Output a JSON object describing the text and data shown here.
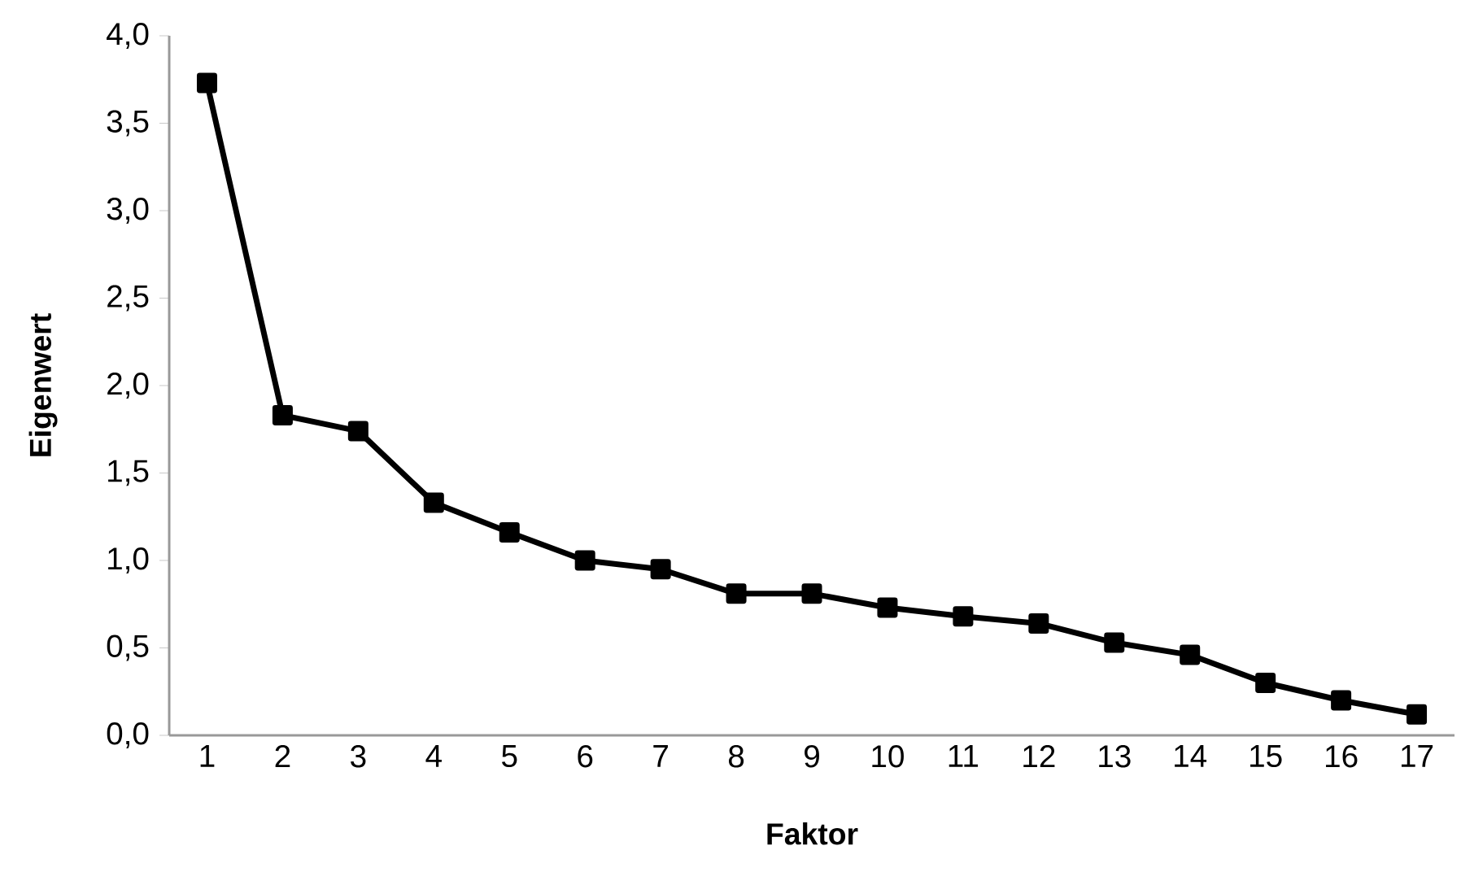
{
  "chart_data": {
    "type": "line",
    "xlabel": "Faktor",
    "ylabel": "Eigenwert",
    "categories": [
      "1",
      "2",
      "3",
      "4",
      "5",
      "6",
      "7",
      "8",
      "9",
      "10",
      "11",
      "12",
      "13",
      "14",
      "15",
      "16",
      "17"
    ],
    "series": [
      {
        "color": "#000000",
        "values": [
          3.73,
          1.83,
          1.74,
          1.33,
          1.16,
          1.0,
          0.95,
          0.81,
          0.81,
          0.73,
          0.68,
          0.64,
          0.53,
          0.46,
          0.3,
          0.2,
          0.12
        ]
      }
    ],
    "ylim": [
      0,
      4
    ],
    "yticks": [
      {
        "value": 0,
        "label": "0,0"
      },
      {
        "value": 0.5,
        "label": "0,5"
      },
      {
        "value": 1,
        "label": "1,0"
      },
      {
        "value": 1.5,
        "label": "1,5"
      },
      {
        "value": 2,
        "label": "2,0"
      },
      {
        "value": 2.5,
        "label": "2,5"
      },
      {
        "value": 3,
        "label": "3,0"
      },
      {
        "value": 3.5,
        "label": "3,5"
      },
      {
        "value": 4,
        "label": "4,0"
      }
    ],
    "marker": "square",
    "line_style": "solid",
    "grid": false
  }
}
